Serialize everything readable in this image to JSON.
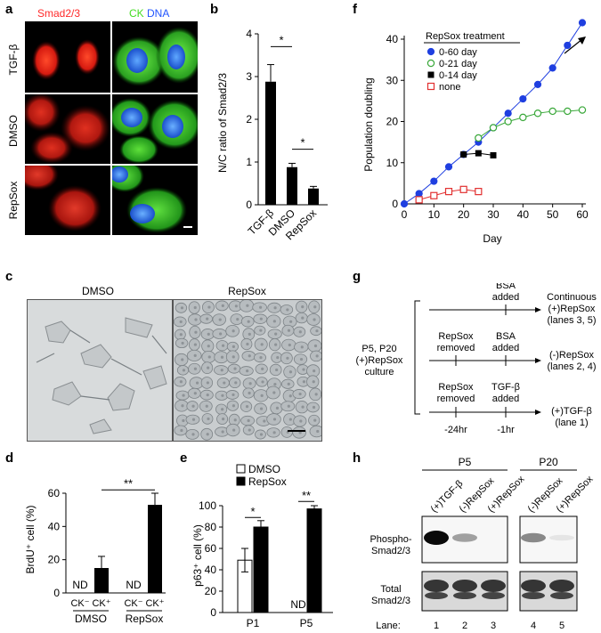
{
  "panel_labels": {
    "a": "a",
    "b": "b",
    "c": "c",
    "d": "d",
    "e": "e",
    "f": "f",
    "g": "g",
    "h": "h"
  },
  "panel_a": {
    "col1_header": "Smad2/3",
    "col2_header_ck": "CK",
    "col2_header_dna": "DNA",
    "rows": [
      "TGF-β",
      "DMSO",
      "RepSox"
    ],
    "colors": {
      "smad": "#ff2a2a",
      "ck": "#55ee33",
      "dna": "#3377ff"
    }
  },
  "panel_c": {
    "left_title": "DMSO",
    "right_title": "RepSox"
  },
  "panel_g": {
    "source": [
      "P5, P20",
      "(+)RepSox",
      "culture"
    ],
    "rows": [
      {
        "top_label": [
          "BSA",
          "added"
        ],
        "outcome": [
          "Continuous",
          "(+)RepSox",
          "(lanes 3, 5)"
        ]
      },
      {
        "left_label": [
          "RepSox",
          "removed"
        ],
        "right_label": [
          "BSA",
          "added"
        ],
        "outcome": [
          "(-)RepSox",
          "(lanes 2, 4)"
        ]
      },
      {
        "left_label": [
          "RepSox",
          "removed"
        ],
        "right_label": [
          "TGF-β",
          "added"
        ],
        "outcome": [
          "(+)TGF-β",
          "(lane 1)"
        ]
      }
    ],
    "times": [
      "-24hr",
      "-1hr"
    ]
  },
  "panel_h": {
    "groups": [
      "P5",
      "P20"
    ],
    "lane_headers": [
      "(+)TGF-β",
      "(-)RepSox",
      "(+)RepSox",
      "(-)RepSox",
      "(+)RepSox"
    ],
    "row_labels": [
      [
        "Phospho-",
        "Smad2/3"
      ],
      [
        "Total",
        "Smad2/3"
      ]
    ],
    "lane_title": "Lane:",
    "lane_numbers": [
      "1",
      "2",
      "3",
      "4",
      "5"
    ],
    "phospho_intensity": [
      1.0,
      0.35,
      0.0,
      0.45,
      0.05
    ],
    "total_intensity": [
      0.85,
      0.85,
      0.85,
      0.85,
      0.85
    ]
  },
  "chart_data": [
    {
      "id": "b",
      "type": "bar",
      "categories": [
        "TGF-β",
        "DMSO",
        "RepSox"
      ],
      "values": [
        2.88,
        0.88,
        0.38
      ],
      "errors": [
        0.4,
        0.09,
        0.05
      ],
      "ylabel": "N/C ratio of Smad2/3",
      "ylim": [
        0,
        4
      ],
      "yticks": [
        "0",
        "1",
        "2",
        "3",
        "4"
      ],
      "annotations": [
        "*",
        "*"
      ]
    },
    {
      "id": "d",
      "type": "bar",
      "groups": [
        "DMSO",
        "RepSox"
      ],
      "categories": [
        "CK⁻",
        "CK⁺",
        "CK⁻",
        "CK⁺"
      ],
      "values": [
        0,
        15,
        0,
        53
      ],
      "errors": [
        0,
        7,
        0,
        7
      ],
      "nd_labels": [
        "ND",
        "",
        "ND",
        ""
      ],
      "ylabel": "BrdU⁺ cell (%)",
      "ylim": [
        0,
        60
      ],
      "yticks": [
        "0",
        "20",
        "40",
        "60"
      ],
      "annotations": [
        "**"
      ]
    },
    {
      "id": "e",
      "type": "bar",
      "categories": [
        "P1",
        "P5"
      ],
      "series": [
        {
          "name": "DMSO",
          "values": [
            49,
            0
          ],
          "errors": [
            11,
            0
          ],
          "color": "#ffffff"
        },
        {
          "name": "RepSox",
          "values": [
            80,
            97
          ],
          "errors": [
            6,
            3
          ],
          "color": "#000000"
        }
      ],
      "nd_labels": [
        "ND"
      ],
      "ylabel": "p63⁺ cell (%)",
      "ylim": [
        0,
        100
      ],
      "yticks": [
        "0",
        "20",
        "40",
        "60",
        "80",
        "100"
      ],
      "annotations": [
        "*",
        "**"
      ]
    },
    {
      "id": "f",
      "type": "line",
      "title": "RepSox treatment",
      "xlabel": "Day",
      "ylabel": "Population doubling",
      "xlim": [
        0,
        60
      ],
      "ylim": [
        0,
        40
      ],
      "xticks": [
        "0",
        "10",
        "20",
        "30",
        "40",
        "50",
        "60"
      ],
      "yticks": [
        "0",
        "10",
        "20",
        "30",
        "40"
      ],
      "series": [
        {
          "name": "0-60 day",
          "marker": "circle-filled",
          "color": "#1f3fe0",
          "x": [
            0,
            5,
            10,
            15,
            20,
            25,
            30,
            35,
            40,
            45,
            50,
            55,
            60
          ],
          "y": [
            0,
            2.5,
            5.5,
            9,
            12,
            15,
            18.5,
            22,
            25.5,
            29,
            33,
            38.5,
            44
          ]
        },
        {
          "name": "0-21 day",
          "marker": "circle-open",
          "color": "#3aa83a",
          "x": [
            25,
            30,
            35,
            40,
            45,
            50,
            55,
            60
          ],
          "y": [
            16,
            18.5,
            20,
            21,
            22,
            22.5,
            22.5,
            22.8
          ]
        },
        {
          "name": "0-14 day",
          "marker": "square-filled",
          "color": "#000000",
          "x": [
            20,
            25,
            30
          ],
          "y": [
            12,
            12.3,
            11.8
          ]
        },
        {
          "name": "none",
          "marker": "square-open",
          "color": "#e23030",
          "x": [
            5,
            10,
            15,
            20,
            25
          ],
          "y": [
            1,
            2,
            3,
            3.5,
            3
          ]
        }
      ]
    }
  ]
}
